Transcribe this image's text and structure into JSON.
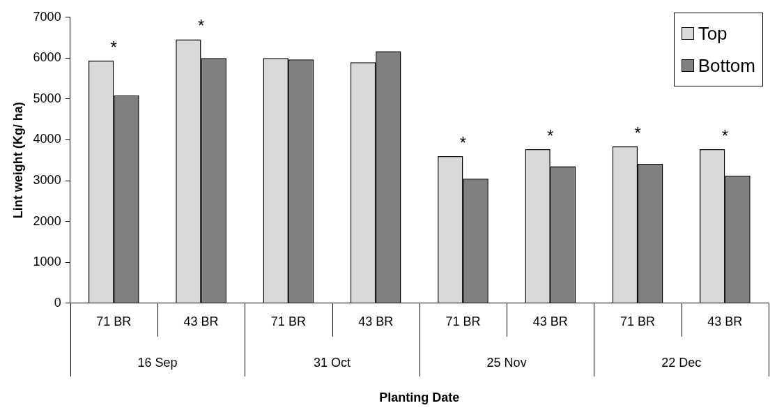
{
  "chart_data": {
    "type": "bar",
    "xlabel": "Planting Date",
    "ylabel": "Lint weight (Kg/ ha)",
    "categories": [
      "71 BR",
      "43 BR",
      "71 BR",
      "43 BR",
      "71 BR",
      "43 BR",
      "71 BR",
      "43 BR"
    ],
    "series": [
      {
        "name": "Top",
        "color": "#d9d9d9",
        "values": [
          5940,
          6460,
          6000,
          5900,
          3600,
          3770,
          3840,
          3770
        ],
        "value_labels": [
          "*",
          "*",
          null,
          null,
          "*",
          "*",
          "*",
          "*"
        ]
      },
      {
        "name": "Bottom",
        "color": "#808080",
        "values": [
          5090,
          6000,
          5970,
          6170,
          3050,
          3350,
          3410,
          3120
        ]
      }
    ],
    "annotations": [
      "16 Sep",
      "31 Oct",
      "25 Nov",
      "22 Dec"
    ],
    "ylim": [
      0,
      7000
    ],
    "yticks": [
      0,
      1000,
      2000,
      3000,
      4000,
      5000,
      6000,
      7000
    ],
    "grid": false,
    "legend": "top right"
  }
}
